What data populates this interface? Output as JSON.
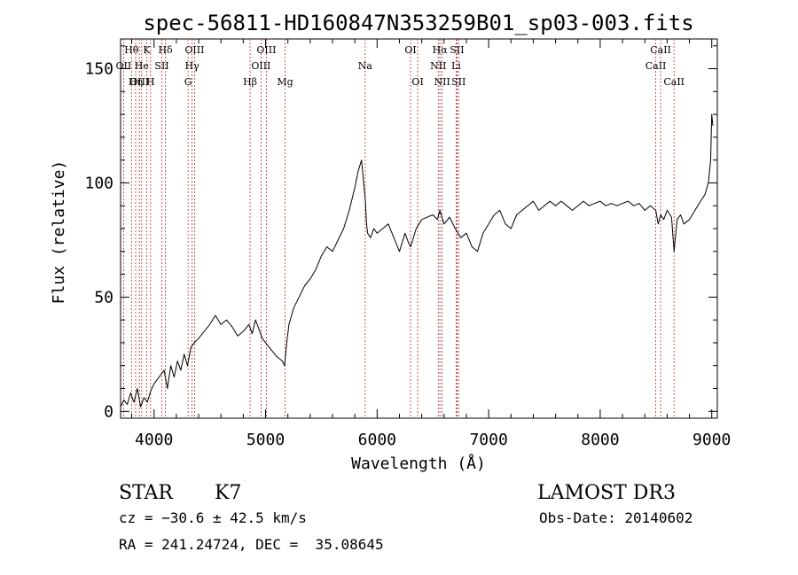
{
  "chart_data": {
    "type": "line",
    "title": "spec-56811-HD160847N353259B01_sp03-003.fits",
    "xlabel": "Wavelength (Å)",
    "ylabel": "Flux (relative)",
    "xlim": [
      3700,
      9050
    ],
    "ylim": [
      -3,
      163
    ],
    "x_ticks": [
      4000,
      5000,
      6000,
      7000,
      8000,
      9000
    ],
    "y_ticks": [
      0,
      50,
      100,
      150
    ],
    "grid": false,
    "series": [
      {
        "x": [
          3700,
          3730,
          3760,
          3790,
          3820,
          3850,
          3880,
          3910,
          3940,
          3970,
          4000,
          4030,
          4060,
          4090,
          4120,
          4150,
          4180,
          4210,
          4240,
          4270,
          4300,
          4330,
          4360,
          4400,
          4450,
          4500,
          4550,
          4600,
          4650,
          4700,
          4750,
          4800,
          4850,
          4880,
          4910,
          4940,
          4970,
          5000,
          5050,
          5100,
          5150,
          5170,
          5190,
          5210,
          5250,
          5300,
          5350,
          5400,
          5450,
          5500,
          5550,
          5600,
          5650,
          5700,
          5750,
          5800,
          5830,
          5860,
          5880,
          5895,
          5905,
          5915,
          5940,
          5970,
          6000,
          6050,
          6100,
          6150,
          6200,
          6250,
          6280,
          6300,
          6350,
          6400,
          6450,
          6500,
          6540,
          6563,
          6600,
          6650,
          6700,
          6750,
          6800,
          6850,
          6900,
          6950,
          7000,
          7050,
          7100,
          7150,
          7200,
          7250,
          7300,
          7350,
          7400,
          7450,
          7500,
          7550,
          7600,
          7650,
          7700,
          7750,
          7800,
          7850,
          7900,
          7950,
          8000,
          8050,
          8100,
          8150,
          8200,
          8250,
          8300,
          8350,
          8400,
          8450,
          8498,
          8520,
          8542,
          8570,
          8600,
          8640,
          8662,
          8690,
          8720,
          8750,
          8800,
          8850,
          8900,
          8940,
          8970,
          8990,
          9000,
          9010
        ],
        "y": [
          2,
          5,
          3,
          8,
          4,
          10,
          2,
          6,
          4,
          9,
          12,
          14,
          16,
          18,
          10,
          20,
          15,
          22,
          18,
          25,
          20,
          28,
          30,
          32,
          35,
          38,
          42,
          38,
          40,
          37,
          33,
          35,
          38,
          34,
          40,
          36,
          32,
          30,
          27,
          24,
          22,
          20,
          30,
          38,
          45,
          50,
          55,
          58,
          62,
          68,
          72,
          70,
          75,
          80,
          88,
          98,
          105,
          110,
          100,
          92,
          82,
          78,
          76,
          80,
          78,
          80,
          82,
          76,
          70,
          78,
          74,
          72,
          80,
          84,
          85,
          86,
          84,
          88,
          82,
          85,
          80,
          76,
          78,
          72,
          70,
          78,
          82,
          86,
          88,
          82,
          80,
          86,
          88,
          90,
          92,
          88,
          90,
          92,
          90,
          92,
          90,
          88,
          90,
          92,
          90,
          91,
          92,
          90,
          91,
          90,
          91,
          92,
          90,
          91,
          88,
          90,
          88,
          82,
          86,
          84,
          88,
          85,
          70,
          84,
          86,
          82,
          84,
          88,
          92,
          95,
          100,
          110,
          130,
          125
        ]
      }
    ],
    "spectral_lines": [
      {
        "label": "Hθ",
        "x": 3798,
        "row": 1
      },
      {
        "label": "OII",
        "x": 3727,
        "row": 2
      },
      {
        "label": "OIII",
        "x": 3869,
        "row": 3
      },
      {
        "label": "K",
        "x": 3934,
        "row": 1
      },
      {
        "label": "He",
        "x": 3889,
        "row": 2
      },
      {
        "label": "Hη",
        "x": 3835,
        "row": 3
      },
      {
        "label": "Hδ",
        "x": 4102,
        "row": 1
      },
      {
        "label": "SII",
        "x": 4070,
        "row": 2
      },
      {
        "label": "H",
        "x": 3969,
        "row": 3
      },
      {
        "label": "OIII",
        "x": 4363,
        "row": 1
      },
      {
        "label": "Hγ",
        "x": 4341,
        "row": 2
      },
      {
        "label": "G",
        "x": 4305,
        "row": 3
      },
      {
        "label": "OIII",
        "x": 5007,
        "row": 1
      },
      {
        "label": "OIII",
        "x": 4959,
        "row": 2
      },
      {
        "label": "Hβ",
        "x": 4861,
        "row": 3
      },
      {
        "label": "Mg",
        "x": 5175,
        "row": 3
      },
      {
        "label": "Na",
        "x": 5893,
        "row": 2
      },
      {
        "label": "OI",
        "x": 6300,
        "row": 1
      },
      {
        "label": "OI",
        "x": 6364,
        "row": 3
      },
      {
        "label": "Hα",
        "x": 6563,
        "row": 1
      },
      {
        "label": "SII",
        "x": 6717,
        "row": 1
      },
      {
        "label": "NII",
        "x": 6548,
        "row": 2
      },
      {
        "label": "Li",
        "x": 6708,
        "row": 2
      },
      {
        "label": "NII",
        "x": 6583,
        "row": 3
      },
      {
        "label": "SII",
        "x": 6731,
        "row": 3
      },
      {
        "label": "CaII",
        "x": 8542,
        "row": 1
      },
      {
        "label": "CaII",
        "x": 8498,
        "row": 2
      },
      {
        "label": "CaII",
        "x": 8662,
        "row": 3
      }
    ]
  },
  "info": {
    "object_class": "STAR",
    "subclass": "K7",
    "survey": "LAMOST DR3",
    "cz": "cz = −30.6 ± 42.5 km/s",
    "obs_date": "Obs-Date: 20140602",
    "coords": "RA = 241.24724, DEC =  35.08645"
  }
}
